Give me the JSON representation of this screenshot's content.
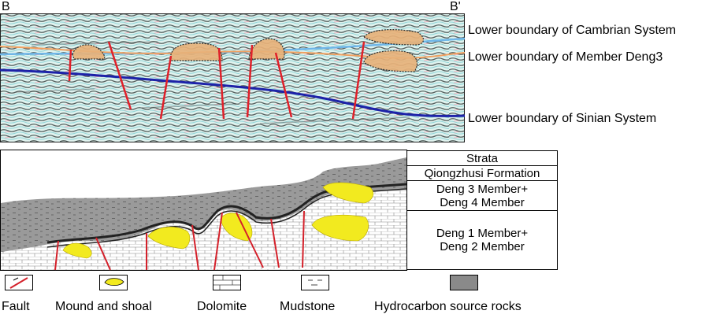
{
  "seismic_section": {
    "left_end_label": "B",
    "right_end_label": "B'",
    "horizons": [
      {
        "label": "Lower boundary of Cambrian System",
        "color": "#6fb6e8"
      },
      {
        "label": "Lower boundary of Member Deng3",
        "color": "#f0a060"
      },
      {
        "label": "Lower boundary of Sinian System",
        "color": "#1d22a8"
      }
    ]
  },
  "strata_table": {
    "header": "Strata",
    "rows": [
      {
        "name": "Qiongzhusi Formation"
      },
      {
        "name_line1": "Deng 3 Member+",
        "name_line2": "Deng 4 Member"
      },
      {
        "name_line1": "Deng 1 Member+",
        "name_line2": "Deng 2 Member"
      }
    ]
  },
  "legend": [
    {
      "icon": "fault-icon",
      "label": "Fault",
      "color": "#d4202a"
    },
    {
      "icon": "mound-shoal-icon",
      "label": "Mound and shoal",
      "color": "#f2ea1f"
    },
    {
      "icon": "dolomite-icon",
      "label": "Dolomite"
    },
    {
      "icon": "mudstone-icon",
      "label": "Mudstone"
    },
    {
      "icon": "source-rock-icon",
      "label": "Hydrocarbon source rocks",
      "color": "#8a8a8a"
    }
  ]
}
